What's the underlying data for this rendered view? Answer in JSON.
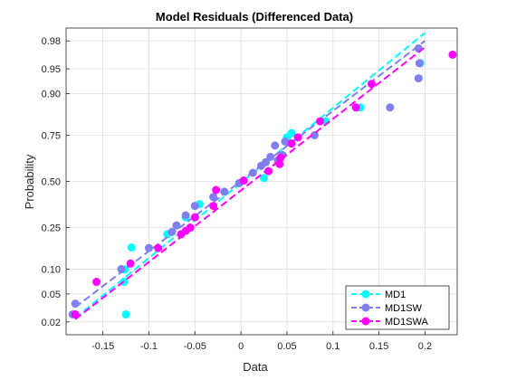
{
  "chart_data": {
    "type": "scatter",
    "title": "Model  Residuals  (Differenced  Data)",
    "xlabel": "Data",
    "ylabel": "Probability",
    "xlim": [
      -0.19,
      0.235
    ],
    "ylim": [
      0.0125,
      0.9875
    ],
    "y_scale": "normal-probability",
    "grid": true,
    "legend_position": "bottom-right",
    "x_ticks": [
      -0.15,
      -0.1,
      -0.05,
      0,
      0.05,
      0.1,
      0.15,
      0.2
    ],
    "x_tick_labels": [
      "-0.15",
      "-0.1",
      "-0.05",
      "0",
      "0.05",
      "0.1",
      "0.15",
      "0.2"
    ],
    "y_ticks": [
      0.02,
      0.05,
      0.1,
      0.25,
      0.5,
      0.75,
      0.9,
      0.95,
      0.98
    ],
    "y_tick_labels": [
      "0.02",
      "0.05",
      "0.10",
      "0.25",
      "0.50",
      "0.75",
      "0.90",
      "0.95",
      "0.98"
    ],
    "series": [
      {
        "name": "MD1",
        "color": "#00FFFF",
        "points": [
          [
            -0.125,
            0.026
          ],
          [
            -0.127,
            0.071
          ],
          [
            -0.126,
            0.099
          ],
          [
            -0.119,
            0.167
          ],
          [
            -0.08,
            0.22
          ],
          [
            -0.06,
            0.3
          ],
          [
            -0.045,
            0.37
          ],
          [
            0.025,
            0.52
          ],
          [
            0.05,
            0.74
          ],
          [
            0.055,
            0.76
          ],
          [
            0.092,
            0.81
          ],
          [
            0.13,
            0.86
          ],
          [
            0.195,
            0.958
          ]
        ],
        "fit_line": [
          [
            -0.18,
            0.023
          ],
          [
            0.2,
            0.985
          ]
        ]
      },
      {
        "name": "MD1SW",
        "color": "#7F7FF0",
        "points": [
          [
            -0.183,
            0.026
          ],
          [
            -0.18,
            0.037
          ],
          [
            -0.13,
            0.1
          ],
          [
            -0.1,
            0.165
          ],
          [
            -0.075,
            0.23
          ],
          [
            -0.07,
            0.26
          ],
          [
            -0.06,
            0.31
          ],
          [
            -0.05,
            0.36
          ],
          [
            -0.03,
            0.41
          ],
          [
            -0.018,
            0.44
          ],
          [
            -0.002,
            0.49
          ],
          [
            0.013,
            0.55
          ],
          [
            0.022,
            0.59
          ],
          [
            0.027,
            0.61
          ],
          [
            0.032,
            0.64
          ],
          [
            0.037,
            0.7
          ],
          [
            0.04,
            0.62
          ],
          [
            0.045,
            0.65
          ],
          [
            0.048,
            0.72
          ],
          [
            0.08,
            0.75
          ],
          [
            0.162,
            0.86
          ],
          [
            0.193,
            0.934
          ],
          [
            0.193,
            0.974
          ],
          [
            0.194,
            0.958
          ]
        ],
        "fit_line": [
          [
            -0.18,
            0.033
          ],
          [
            0.2,
            0.98
          ]
        ]
      },
      {
        "name": "MD1SWA",
        "color": "#FF00FF",
        "points": [
          [
            -0.18,
            0.026
          ],
          [
            -0.157,
            0.071
          ],
          [
            -0.12,
            0.115
          ],
          [
            -0.09,
            0.165
          ],
          [
            -0.065,
            0.22
          ],
          [
            -0.06,
            0.235
          ],
          [
            -0.055,
            0.25
          ],
          [
            -0.05,
            0.3
          ],
          [
            -0.03,
            0.36
          ],
          [
            -0.027,
            0.45
          ],
          [
            0.003,
            0.505
          ],
          [
            0.03,
            0.56
          ],
          [
            0.042,
            0.6
          ],
          [
            0.043,
            0.635
          ],
          [
            0.055,
            0.71
          ],
          [
            0.062,
            0.74
          ],
          [
            0.086,
            0.81
          ],
          [
            0.125,
            0.86
          ],
          [
            0.142,
            0.923
          ],
          [
            0.23,
            0.968
          ]
        ],
        "fit_line": [
          [
            -0.18,
            0.022
          ],
          [
            0.2,
            0.975
          ]
        ]
      }
    ]
  }
}
